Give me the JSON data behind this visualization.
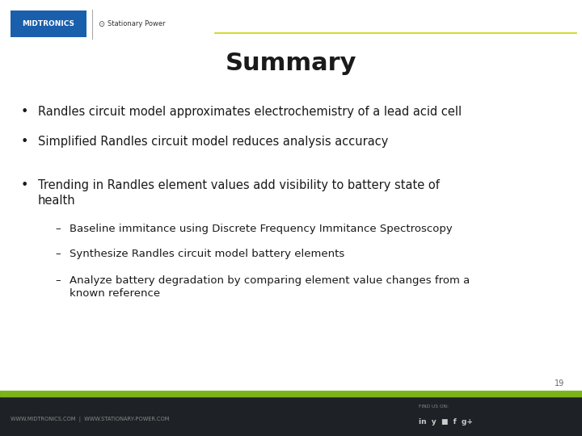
{
  "title": "Summary",
  "title_fontsize": 22,
  "title_fontweight": "bold",
  "background_color": "#ffffff",
  "header_line_color": "#c8d400",
  "footer_bg_color": "#1e2226",
  "footer_green_color": "#7ab317",
  "footer_text_left": "WWW.MIDTRONICS.COM  |  WWW.STATIONARY-POWER.COM",
  "footer_page_number": "19",
  "bullet_points": [
    "Randles circuit model approximates electrochemistry of a lead acid cell",
    "Simplified Randles circuit model reduces analysis accuracy",
    "Trending in Randles element values add visibility to battery state of\nhealth"
  ],
  "sub_bullets": [
    "Baseline immitance using Discrete Frequency Immitance Spectroscopy",
    "Synthesize Randles circuit model battery elements",
    "Analyze battery degradation by comparing element value changes from a\nknown reference"
  ],
  "bullet_fontsize": 10.5,
  "sub_bullet_fontsize": 9.5,
  "text_color": "#1a1a1a",
  "midtronics_blue": "#1a5fac"
}
